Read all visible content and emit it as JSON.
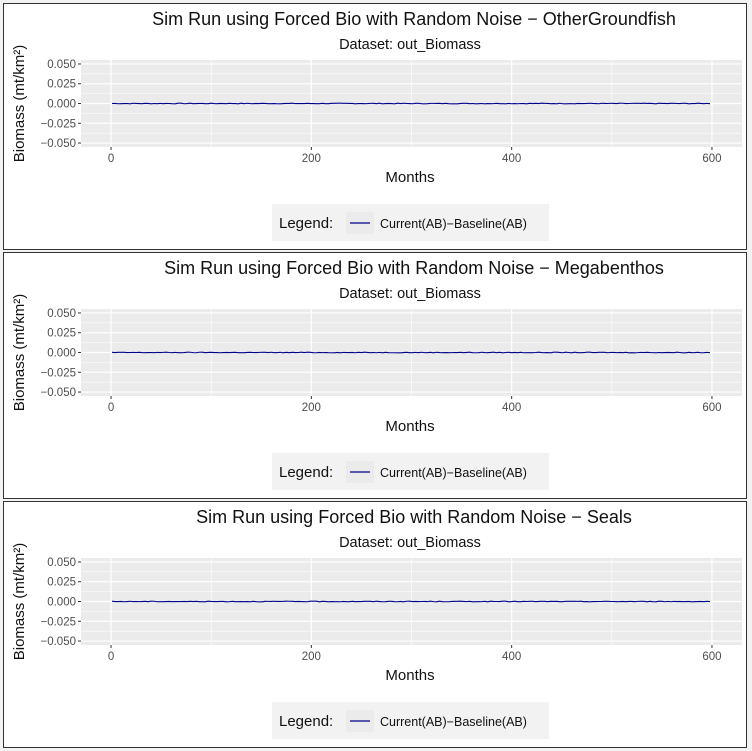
{
  "colors": {
    "panel_background": "#ebebeb",
    "gridline": "#ffffff",
    "series_line": "#00008b",
    "legend_background": "#f2f2f2"
  },
  "chart_data": [
    {
      "type": "line",
      "title": "Sim Run using Forced Bio with Random Noise − OtherGroundfish",
      "subtitle": "Dataset: out_Biomass",
      "xlabel": "Months",
      "ylabel": "Biomass (mt/km²)",
      "xlim": [
        -30,
        630
      ],
      "ylim": [
        -0.055,
        0.055
      ],
      "x_ticks": [
        0,
        200,
        400,
        600
      ],
      "x_tick_labels": [
        "0",
        "200",
        "400",
        "600"
      ],
      "y_ticks": [
        -0.05,
        -0.025,
        0,
        0.025,
        0.05
      ],
      "y_tick_labels": [
        "−0.050",
        "−0.025",
        "0.000",
        "0.025",
        "0.050"
      ],
      "grid": true,
      "legend": {
        "title": "Legend:",
        "position": "bottom"
      },
      "series": [
        {
          "name": "Current(AB)−Baseline(AB)",
          "x": [
            1,
            600
          ],
          "y": [
            0,
            0
          ],
          "noise": 0.0004
        }
      ]
    },
    {
      "type": "line",
      "title": "Sim Run using Forced Bio with Random Noise − Megabenthos",
      "subtitle": "Dataset: out_Biomass",
      "xlabel": "Months",
      "ylabel": "Biomass (mt/km²)",
      "xlim": [
        -30,
        630
      ],
      "ylim": [
        -0.055,
        0.055
      ],
      "x_ticks": [
        0,
        200,
        400,
        600
      ],
      "x_tick_labels": [
        "0",
        "200",
        "400",
        "600"
      ],
      "y_ticks": [
        -0.05,
        -0.025,
        0,
        0.025,
        0.05
      ],
      "y_tick_labels": [
        "−0.050",
        "−0.025",
        "0.000",
        "0.025",
        "0.050"
      ],
      "grid": true,
      "legend": {
        "title": "Legend:",
        "position": "bottom"
      },
      "series": [
        {
          "name": "Current(AB)−Baseline(AB)",
          "x": [
            1,
            600
          ],
          "y": [
            0,
            0
          ],
          "noise": 0.0004
        }
      ]
    },
    {
      "type": "line",
      "title": "Sim Run using Forced Bio with Random Noise − Seals",
      "subtitle": "Dataset: out_Biomass",
      "xlabel": "Months",
      "ylabel": "Biomass (mt/km²)",
      "xlim": [
        -30,
        630
      ],
      "ylim": [
        -0.055,
        0.055
      ],
      "x_ticks": [
        0,
        200,
        400,
        600
      ],
      "x_tick_labels": [
        "0",
        "200",
        "400",
        "600"
      ],
      "y_ticks": [
        -0.05,
        -0.025,
        0,
        0.025,
        0.05
      ],
      "y_tick_labels": [
        "−0.050",
        "−0.025",
        "0.000",
        "0.025",
        "0.050"
      ],
      "grid": true,
      "legend": {
        "title": "Legend:",
        "position": "bottom"
      },
      "series": [
        {
          "name": "Current(AB)−Baseline(AB)",
          "x": [
            1,
            600
          ],
          "y": [
            0,
            0
          ],
          "noise": 0.0004
        }
      ]
    }
  ]
}
